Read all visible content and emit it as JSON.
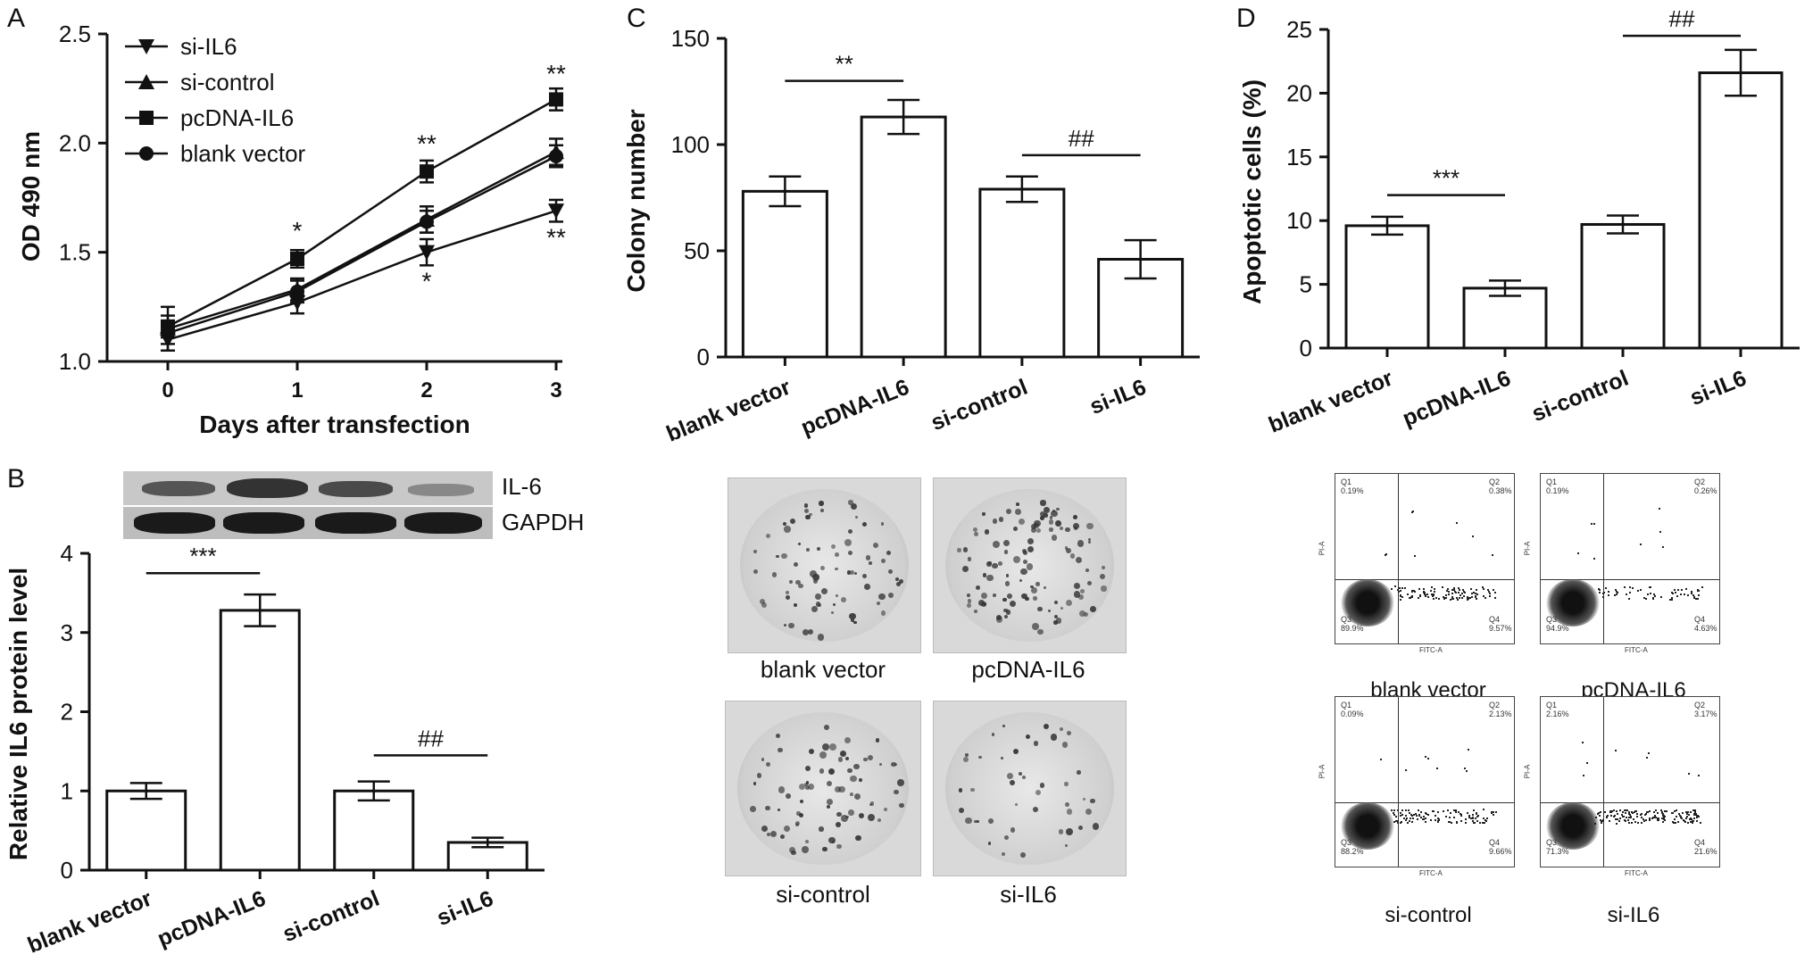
{
  "panels": {
    "a": "A",
    "b": "B",
    "c": "C",
    "d": "D"
  },
  "chart_data": [
    {
      "panel": "A",
      "type": "line",
      "xlabel": "Days after transfection",
      "ylabel": "OD 490 nm",
      "x": [
        0,
        1,
        2,
        3
      ],
      "xticks": [
        "0",
        "1",
        "2",
        "3"
      ],
      "yticks": [
        "1.0",
        "1.5",
        "2.0",
        "2.5"
      ],
      "ylim": [
        1.0,
        2.5
      ],
      "legend_position": "top-left",
      "series": [
        {
          "name": "si-IL6",
          "marker": "triangle-down",
          "values": [
            1.1,
            1.27,
            1.5,
            1.69
          ],
          "errors": [
            0.05,
            0.05,
            0.06,
            0.05
          ]
        },
        {
          "name": "si-control",
          "marker": "triangle-up",
          "values": [
            1.15,
            1.33,
            1.65,
            1.96
          ],
          "errors": [
            0.1,
            0.05,
            0.06,
            0.06
          ]
        },
        {
          "name": "pcDNA-IL6",
          "marker": "square",
          "values": [
            1.16,
            1.47,
            1.87,
            2.2
          ],
          "errors": [
            0.05,
            0.04,
            0.05,
            0.05
          ]
        },
        {
          "name": "blank vector",
          "marker": "circle",
          "values": [
            1.13,
            1.32,
            1.64,
            1.94
          ],
          "errors": [
            0.05,
            0.05,
            0.05,
            0.05
          ]
        }
      ],
      "annotations": [
        {
          "x": 1,
          "y": 1.6,
          "text": "*"
        },
        {
          "x": 2,
          "y": 2.0,
          "text": "**"
        },
        {
          "x": 2,
          "y": 1.37,
          "text": "*"
        },
        {
          "x": 3,
          "y": 2.32,
          "text": "**"
        },
        {
          "x": 3,
          "y": 1.57,
          "text": "**"
        }
      ]
    },
    {
      "panel": "B",
      "type": "bar",
      "ylabel": "Relative IL6 protein level",
      "categories": [
        "blank vector",
        "pcDNA-IL6",
        "si-control",
        "si-IL6"
      ],
      "values": [
        1.0,
        3.28,
        1.0,
        0.35
      ],
      "errors": [
        0.1,
        0.2,
        0.12,
        0.06
      ],
      "ylim": [
        0,
        4
      ],
      "yticks": [
        "0",
        "1",
        "2",
        "3",
        "4"
      ],
      "blot_labels": [
        "IL-6",
        "GAPDH"
      ],
      "brackets": [
        {
          "from": 0,
          "to": 1,
          "y": 3.75,
          "text": "***"
        },
        {
          "from": 2,
          "to": 3,
          "y": 1.45,
          "text": "##"
        }
      ]
    },
    {
      "panel": "C",
      "type": "bar",
      "ylabel": "Colony number",
      "categories": [
        "blank vector",
        "pcDNA-IL6",
        "si-control",
        "si-IL6"
      ],
      "values": [
        78,
        113,
        79,
        46
      ],
      "errors": [
        7,
        8,
        6,
        9
      ],
      "ylim": [
        0,
        150
      ],
      "yticks": [
        "0",
        "50",
        "100",
        "150"
      ],
      "brackets": [
        {
          "from": 0,
          "to": 1,
          "y": 130,
          "text": "**"
        },
        {
          "from": 2,
          "to": 3,
          "y": 95,
          "text": "##"
        }
      ]
    },
    {
      "panel": "D",
      "type": "bar",
      "ylabel": "Apoptotic cells (%)",
      "categories": [
        "blank vector",
        "pcDNA-IL6",
        "si-control",
        "si-IL6"
      ],
      "values": [
        9.6,
        4.7,
        9.7,
        21.6
      ],
      "errors": [
        0.7,
        0.6,
        0.7,
        1.8
      ],
      "ylim": [
        0,
        25
      ],
      "yticks": [
        "0",
        "5",
        "10",
        "15",
        "20",
        "25"
      ],
      "brackets": [
        {
          "from": 0,
          "to": 1,
          "y": 12,
          "text": "***"
        },
        {
          "from": 2,
          "to": 3,
          "y": 24.5,
          "text": "##"
        }
      ]
    }
  ],
  "colony_photos": [
    "blank vector",
    "pcDNA-IL6",
    "si-control",
    "si-IL6"
  ],
  "flow_plots": [
    {
      "label": "blank vector",
      "q1": "Q1\n0.19%",
      "q2": "Q2\n0.38%",
      "q3": "Q3\n89.9%",
      "q4": "Q4\n9.57%"
    },
    {
      "label": "pcDNA-IL6",
      "q1": "Q1\n0.19%",
      "q2": "Q2\n0.26%",
      "q3": "Q3\n94.9%",
      "q4": "Q4\n4.63%"
    },
    {
      "label": "si-control",
      "q1": "Q1\n0.09%",
      "q2": "Q2\n2.13%",
      "q3": "Q3\n88.2%",
      "q4": "Q4\n9.66%"
    },
    {
      "label": "si-IL6",
      "q1": "Q1\n2.16%",
      "q2": "Q2\n3.17%",
      "q3": "Q3\n71.3%",
      "q4": "Q4\n21.6%"
    }
  ],
  "flow_axes": {
    "x": "FITC-A",
    "y": "PI-A"
  }
}
